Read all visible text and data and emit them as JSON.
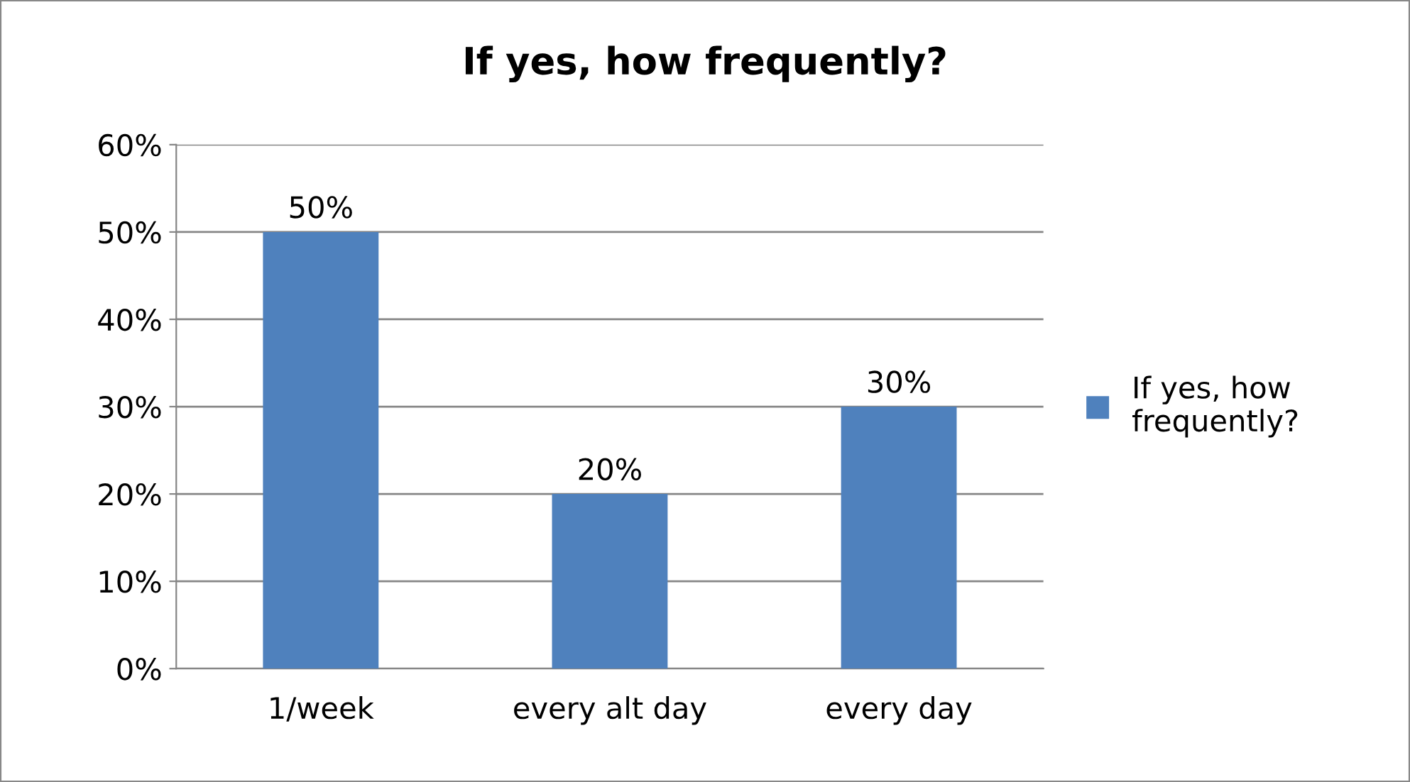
{
  "chart_data": {
    "type": "bar",
    "title": "If yes, how frequently?",
    "categories": [
      "1/week",
      "every alt day",
      "every day"
    ],
    "series": [
      {
        "name": "If yes, how frequently?",
        "color": "#4f81bd",
        "values": [
          50,
          20,
          30
        ],
        "value_labels": [
          "50%",
          "20%",
          "30%"
        ]
      }
    ],
    "ylim": [
      0,
      60
    ],
    "yticks": [
      {
        "value": 0,
        "label": "0%"
      },
      {
        "value": 10,
        "label": "10%"
      },
      {
        "value": 20,
        "label": "20%"
      },
      {
        "value": 30,
        "label": "30%"
      },
      {
        "value": 40,
        "label": "40%"
      },
      {
        "value": 50,
        "label": "50%"
      },
      {
        "value": 60,
        "label": "60%"
      }
    ],
    "grid": "y",
    "legend": "right"
  }
}
